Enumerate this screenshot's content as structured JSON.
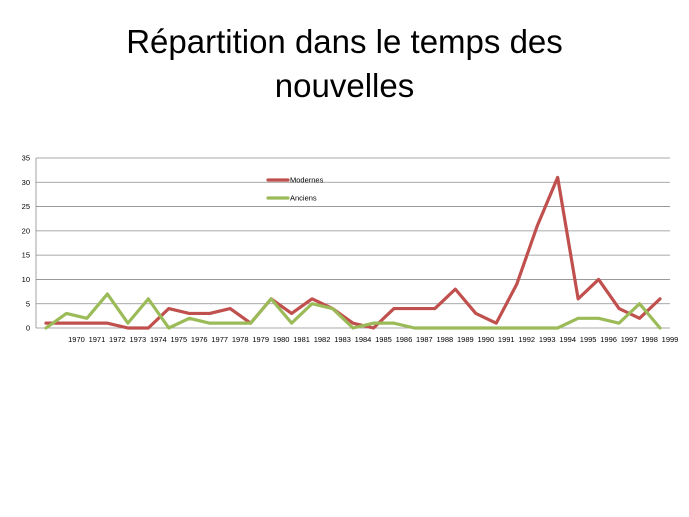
{
  "slide": {
    "title_line1": "Répartition dans le temps des",
    "title_line2": "nouvelles"
  },
  "chart_data": {
    "type": "line",
    "title": "Répartition dans le temps des nouvelles",
    "xlabel": "",
    "ylabel": "",
    "ylim": [
      0,
      35
    ],
    "yticks": [
      0,
      5,
      10,
      15,
      20,
      25,
      30,
      35
    ],
    "grid": true,
    "legend_position": "top-center",
    "x_start": 1969,
    "categories": [
      "",
      "1970",
      "1971",
      "1972",
      "1973",
      "1974",
      "1975",
      "1976",
      "1977",
      "1978",
      "1979",
      "1980",
      "1981",
      "1982",
      "1983",
      "1984",
      "1985",
      "1986",
      "1987",
      "1988",
      "1989",
      "1990",
      "1991",
      "1992",
      "1993",
      "1994",
      "1995",
      "1996",
      "1997",
      "1998",
      "1999"
    ],
    "series": [
      {
        "name": "Modernes",
        "color": "#c0504d",
        "values": [
          1,
          1,
          1,
          1,
          0,
          0,
          4,
          3,
          3,
          4,
          1,
          6,
          3,
          6,
          4,
          1,
          0,
          4,
          4,
          4,
          8,
          3,
          1,
          9,
          21,
          31,
          6,
          10,
          4,
          2,
          6
        ]
      },
      {
        "name": "Anciens",
        "color": "#9bbb59",
        "values": [
          0,
          3,
          2,
          7,
          1,
          6,
          0,
          2,
          1,
          1,
          1,
          6,
          1,
          5,
          4,
          0,
          1,
          1,
          0,
          0,
          0,
          0,
          0,
          0,
          0,
          0,
          2,
          2,
          1,
          5,
          0
        ]
      }
    ]
  }
}
